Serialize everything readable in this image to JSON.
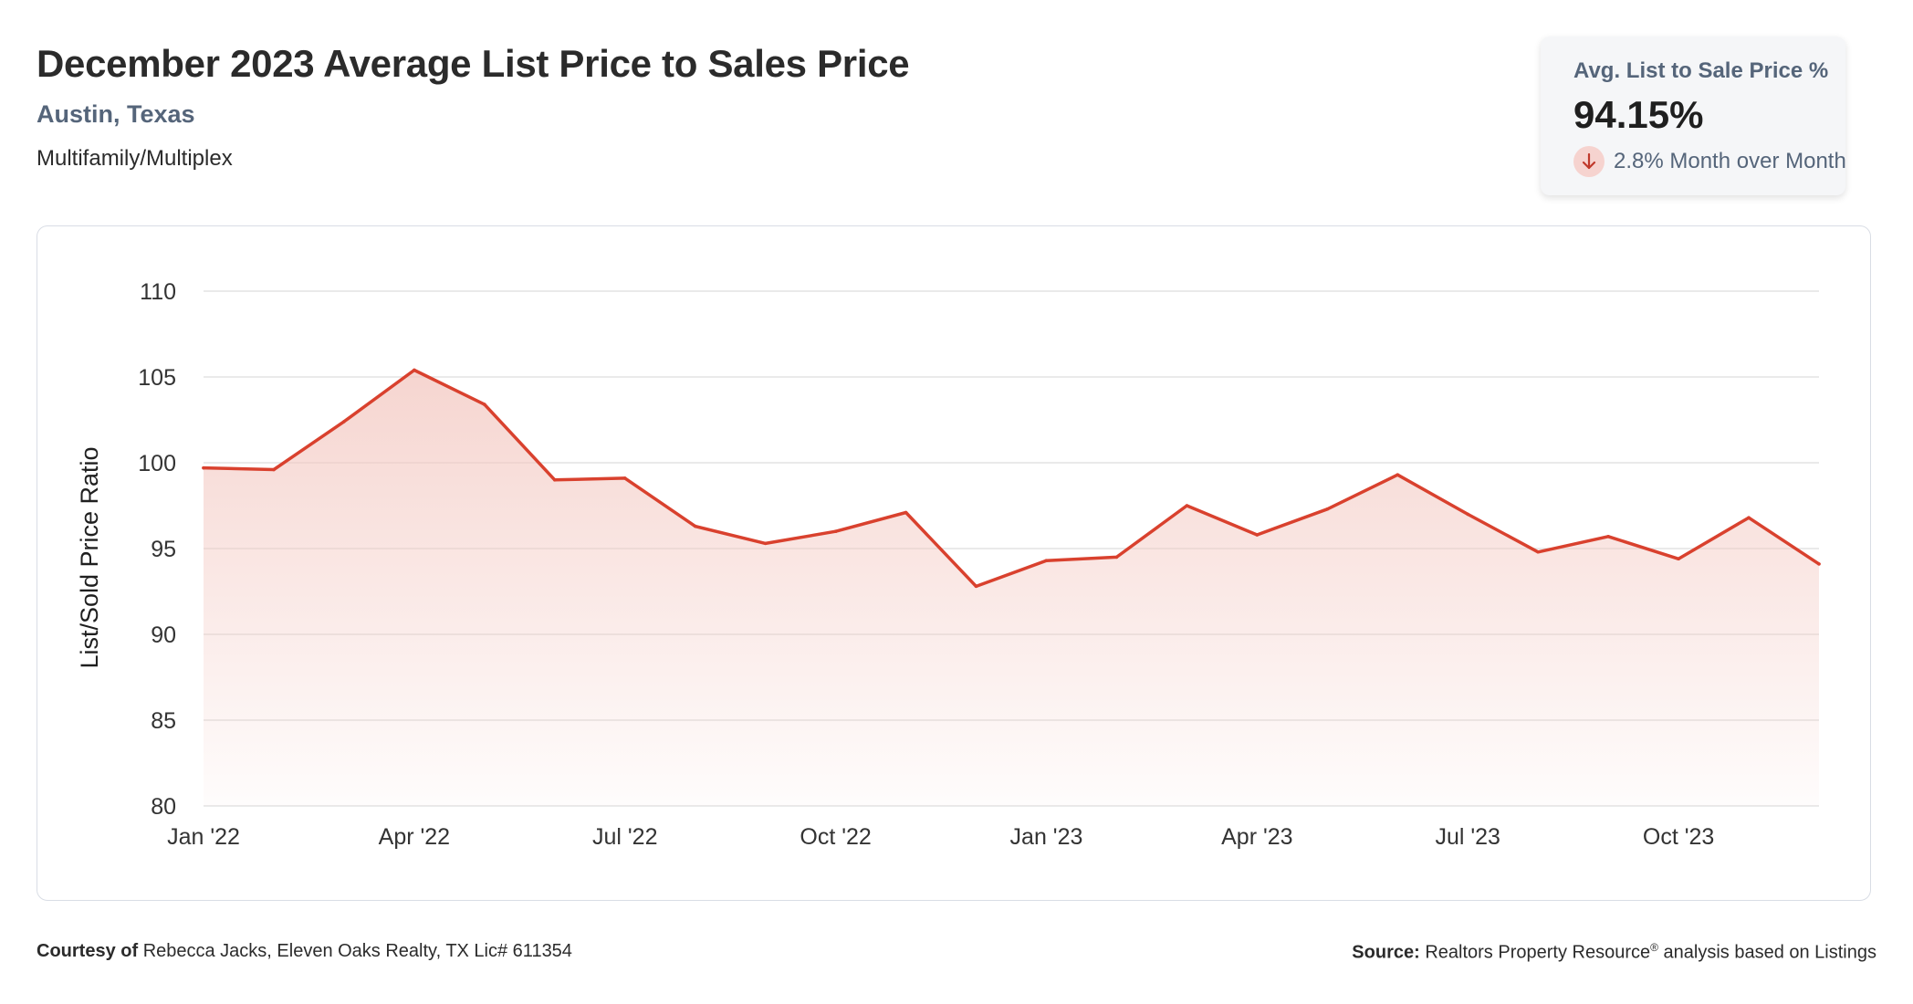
{
  "header": {
    "title": "December 2023 Average List Price to Sales Price",
    "location": "Austin, Texas",
    "property_type": "Multifamily/Multiplex"
  },
  "kpi": {
    "label": "Avg. List to Sale Price %",
    "value": "94.15%",
    "change_text": "2.8% Month over Month",
    "direction": "down",
    "icon": "arrow-down-icon"
  },
  "footer": {
    "courtesy_label": "Courtesy of",
    "courtesy_text": "Rebecca Jacks, Eleven Oaks Realty, TX Lic# 611354",
    "source_label": "Source:",
    "source_name": "Realtors Property Resource",
    "source_mark": "®",
    "source_text": "analysis based on Listings"
  },
  "colors": {
    "line": "#d9412e",
    "area_fill": "#f3c7c0",
    "grid": "#e3e3e3",
    "text": "#2b2b2b"
  },
  "chart_data": {
    "type": "area",
    "title": "",
    "ylabel": "List/Sold Price Ratio",
    "xlabel": "",
    "ylim": [
      80,
      110
    ],
    "yticks": [
      80,
      85,
      90,
      95,
      100,
      105,
      110
    ],
    "xtick_labels": [
      "Jan '22",
      "Apr '22",
      "Jul '22",
      "Oct '22",
      "Jan '23",
      "Apr '23",
      "Jul '23",
      "Oct '23"
    ],
    "grid": true,
    "x": [
      "2022-01",
      "2022-02",
      "2022-03",
      "2022-04",
      "2022-05",
      "2022-06",
      "2022-07",
      "2022-08",
      "2022-09",
      "2022-10",
      "2022-11",
      "2022-12",
      "2023-01",
      "2023-02",
      "2023-03",
      "2023-04",
      "2023-05",
      "2023-06",
      "2023-07",
      "2023-08",
      "2023-09",
      "2023-10",
      "2023-11",
      "2023-12"
    ],
    "series": [
      {
        "values": [
          99.7,
          99.6,
          102.4,
          105.4,
          103.4,
          99.0,
          99.1,
          96.3,
          95.3,
          96.0,
          97.1,
          92.8,
          94.3,
          94.5,
          97.5,
          95.8,
          97.3,
          99.3,
          97.0,
          94.8,
          95.7,
          94.4,
          96.8,
          94.1
        ]
      }
    ]
  }
}
